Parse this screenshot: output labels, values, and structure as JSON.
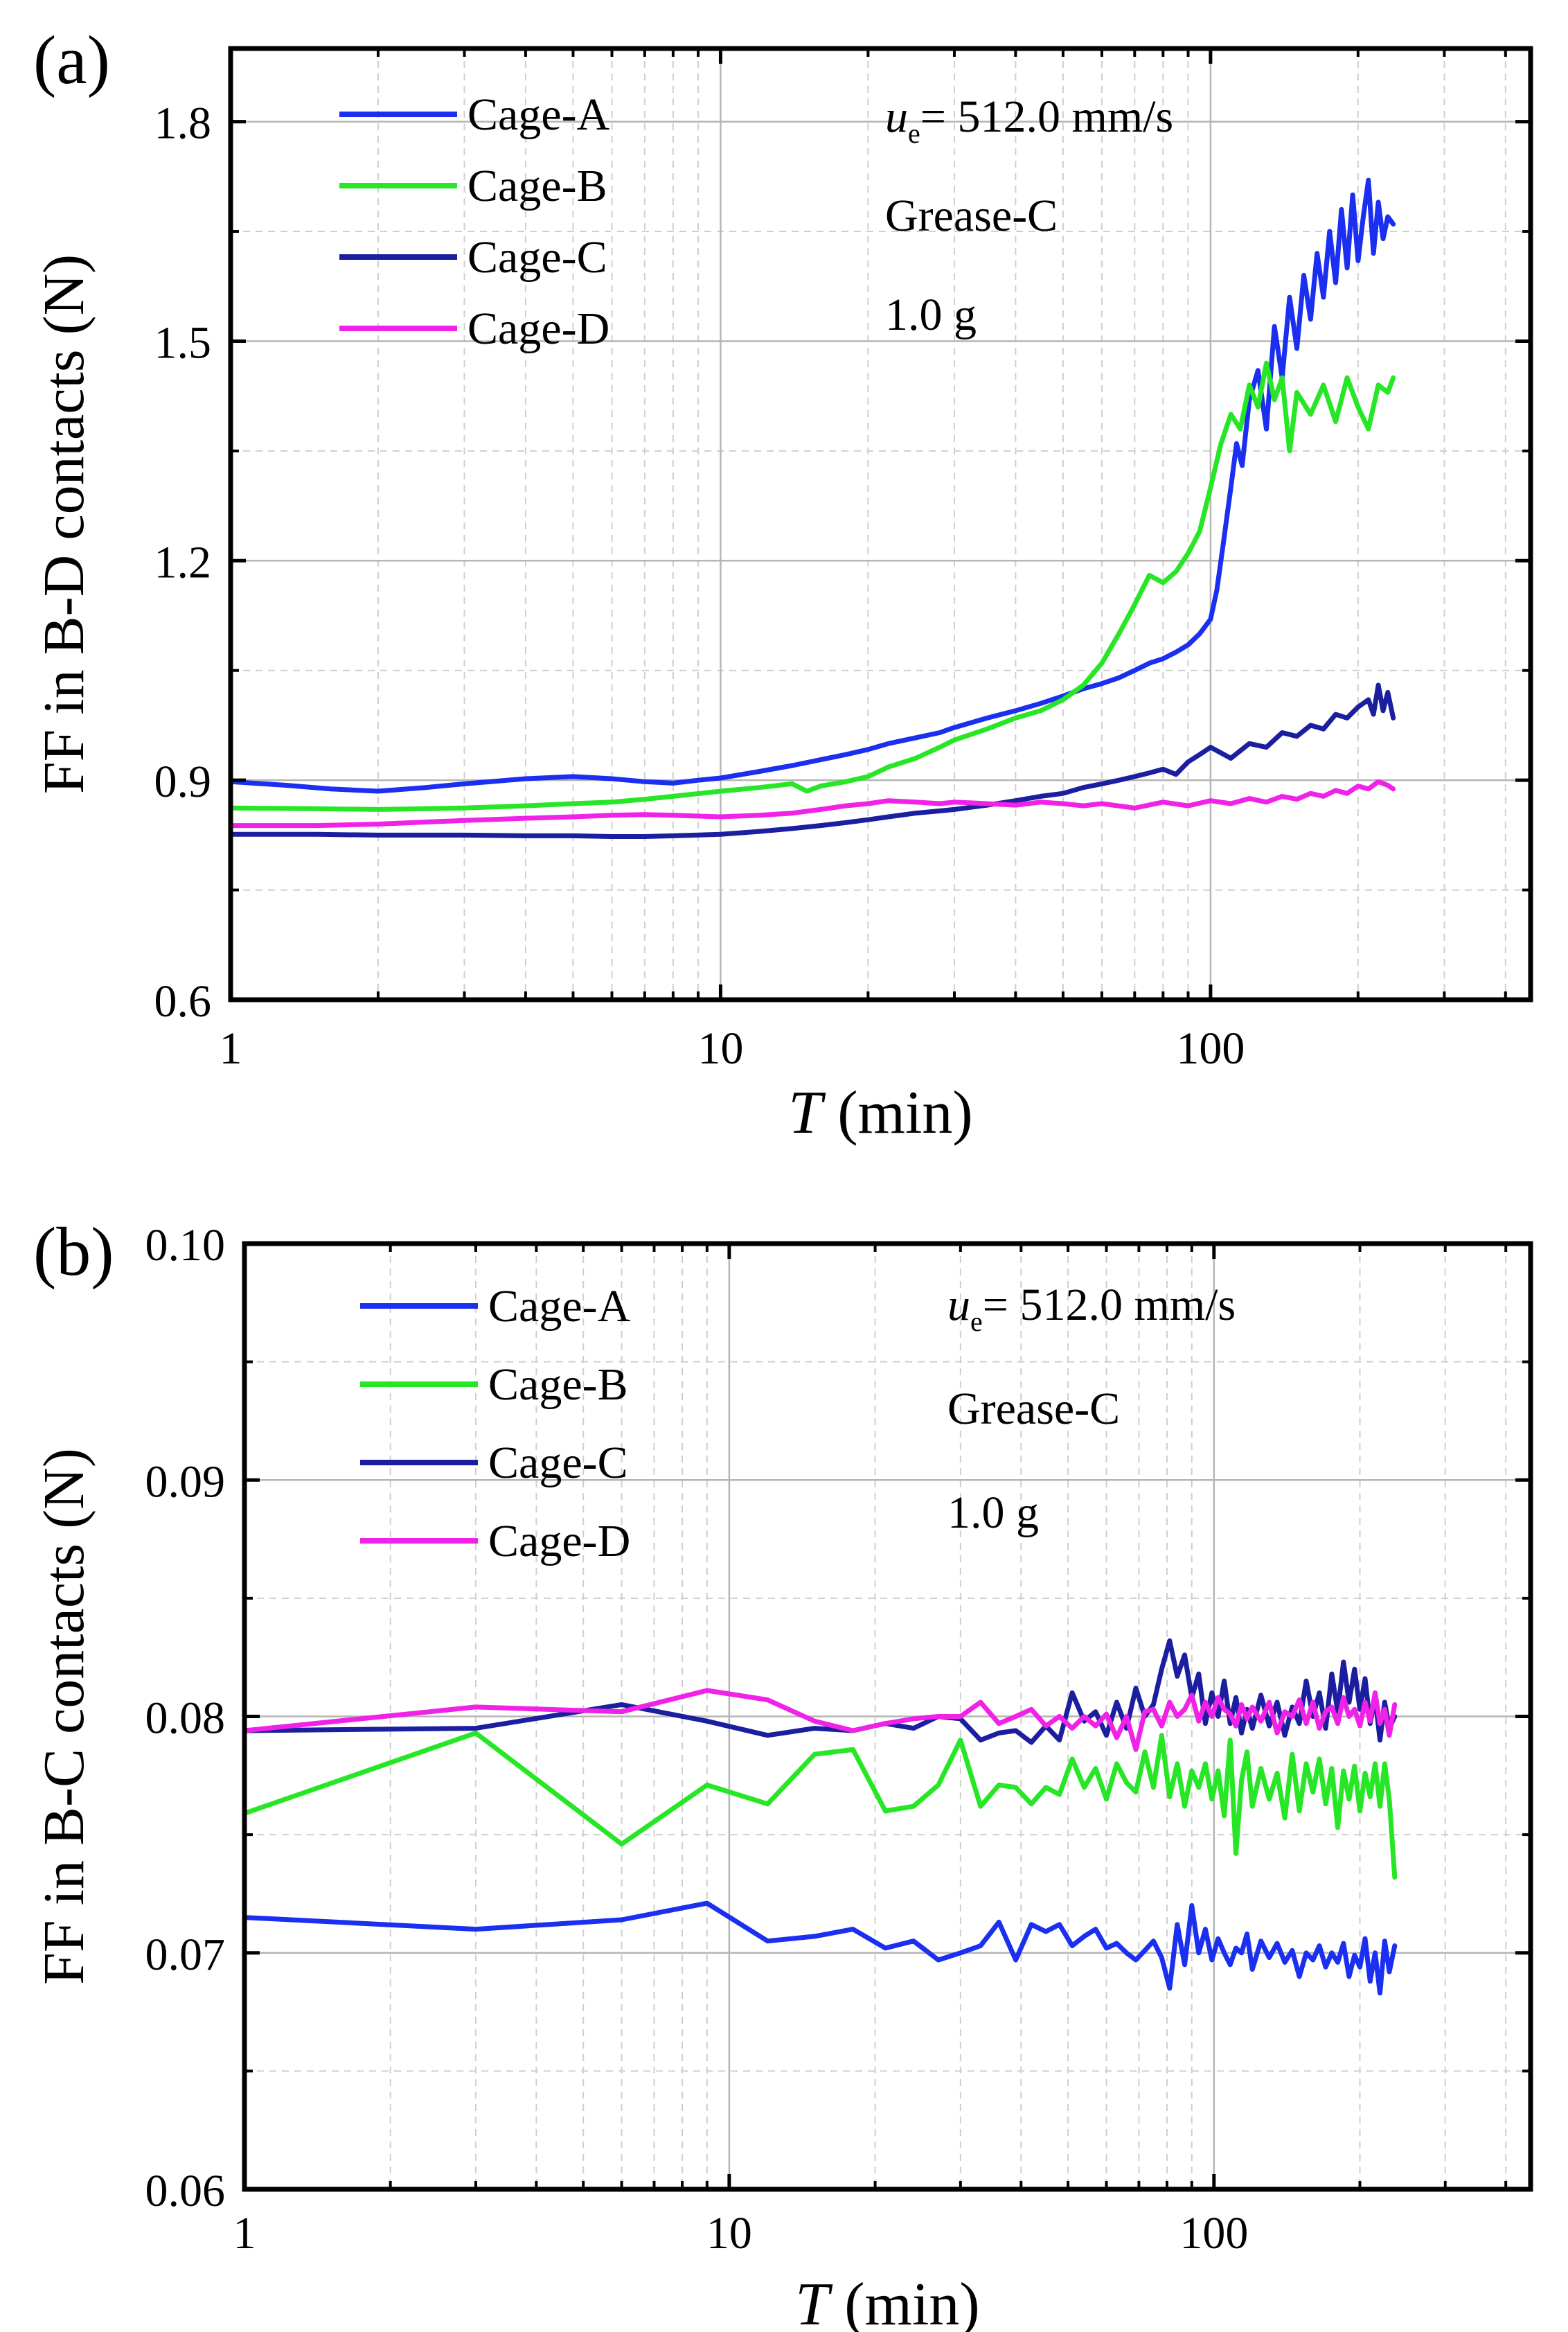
{
  "chart_data": [
    {
      "panel_label": "(a)",
      "type": "line",
      "xscale": "log",
      "xlim": [
        1,
        450
      ],
      "ylim": [
        0.6,
        1.9
      ],
      "xticks": [
        1,
        10,
        100
      ],
      "xtick_labels": [
        "1",
        "10",
        "100"
      ],
      "yticks": [
        0.6,
        0.9,
        1.2,
        1.5,
        1.8
      ],
      "ytick_labels": [
        "0.6",
        "0.9",
        "1.2",
        "1.5",
        "1.8"
      ],
      "yminor": [
        0.75,
        1.05,
        1.35,
        1.65
      ],
      "xlabel_italic": "T",
      "xlabel_rest": " (min)",
      "ylabel": "FF in B-D contacts (N)",
      "grid": true,
      "legend_position": "top-left",
      "annotation": {
        "speed_symbol": "u",
        "speed_sub": "e",
        "speed_value": "= 512.0 mm/s",
        "grease": "Grease-C",
        "mass": "1.0 g"
      },
      "series": [
        {
          "name": "Cage-A",
          "color": "#1a2ff0",
          "x": [
            1,
            1.3,
            1.6,
            2,
            2.5,
            3,
            4,
            5,
            6,
            7,
            8,
            9,
            10,
            12,
            14,
            16,
            18,
            20,
            22,
            25,
            28,
            30,
            35,
            40,
            45,
            50,
            55,
            60,
            65,
            70,
            75,
            80,
            85,
            90,
            95,
            100,
            103,
            106,
            110,
            113,
            116,
            120,
            125,
            130,
            135,
            140,
            145,
            150,
            155,
            160,
            165,
            170,
            175,
            180,
            185,
            190,
            195,
            200,
            205,
            210,
            215,
            220,
            225,
            230,
            236
          ],
          "values": [
            0.898,
            0.893,
            0.888,
            0.885,
            0.89,
            0.895,
            0.902,
            0.905,
            0.902,
            0.898,
            0.896,
            0.9,
            0.903,
            0.912,
            0.92,
            0.928,
            0.935,
            0.942,
            0.95,
            0.958,
            0.965,
            0.972,
            0.985,
            0.995,
            1.005,
            1.015,
            1.025,
            1.032,
            1.04,
            1.05,
            1.06,
            1.066,
            1.075,
            1.085,
            1.1,
            1.12,
            1.16,
            1.22,
            1.3,
            1.36,
            1.33,
            1.42,
            1.46,
            1.38,
            1.52,
            1.45,
            1.56,
            1.49,
            1.59,
            1.53,
            1.62,
            1.56,
            1.65,
            1.58,
            1.68,
            1.6,
            1.7,
            1.61,
            1.67,
            1.72,
            1.62,
            1.69,
            1.64,
            1.67,
            1.66
          ]
        },
        {
          "name": "Cage-B",
          "color": "#27e626",
          "x": [
            1,
            1.5,
            2,
            3,
            4,
            5,
            6,
            7,
            8,
            10,
            12,
            14,
            15,
            16,
            18,
            20,
            22,
            25,
            28,
            30,
            35,
            40,
            45,
            50,
            55,
            60,
            65,
            70,
            75,
            80,
            85,
            90,
            95,
            100,
            105,
            110,
            115,
            120,
            125,
            130,
            135,
            140,
            145,
            150,
            160,
            170,
            180,
            190,
            200,
            210,
            220,
            230,
            236
          ],
          "values": [
            0.862,
            0.861,
            0.86,
            0.862,
            0.865,
            0.868,
            0.87,
            0.874,
            0.878,
            0.885,
            0.89,
            0.895,
            0.885,
            0.892,
            0.898,
            0.905,
            0.918,
            0.93,
            0.945,
            0.955,
            0.97,
            0.985,
            0.995,
            1.01,
            1.03,
            1.06,
            1.1,
            1.14,
            1.18,
            1.17,
            1.185,
            1.21,
            1.24,
            1.3,
            1.36,
            1.4,
            1.38,
            1.44,
            1.41,
            1.47,
            1.42,
            1.45,
            1.35,
            1.43,
            1.4,
            1.44,
            1.39,
            1.45,
            1.41,
            1.38,
            1.44,
            1.43,
            1.45
          ]
        },
        {
          "name": "Cage-C",
          "color": "#1b1e9e",
          "x": [
            1,
            1.5,
            2,
            3,
            4,
            5,
            6,
            7,
            8,
            10,
            12,
            14,
            16,
            18,
            20,
            22,
            25,
            28,
            30,
            35,
            40,
            45,
            50,
            55,
            60,
            65,
            70,
            75,
            80,
            85,
            90,
            95,
            100,
            110,
            120,
            130,
            140,
            150,
            160,
            170,
            180,
            190,
            200,
            210,
            215,
            220,
            225,
            230,
            236
          ],
          "values": [
            0.826,
            0.826,
            0.825,
            0.825,
            0.824,
            0.824,
            0.823,
            0.823,
            0.824,
            0.826,
            0.83,
            0.834,
            0.838,
            0.842,
            0.846,
            0.85,
            0.855,
            0.858,
            0.86,
            0.866,
            0.872,
            0.878,
            0.882,
            0.89,
            0.895,
            0.9,
            0.905,
            0.91,
            0.915,
            0.908,
            0.925,
            0.935,
            0.945,
            0.93,
            0.95,
            0.945,
            0.965,
            0.96,
            0.975,
            0.97,
            0.99,
            0.985,
            1.0,
            1.01,
            0.99,
            1.03,
            0.995,
            1.02,
            0.985
          ]
        },
        {
          "name": "Cage-D",
          "color": "#f022e8",
          "x": [
            1,
            1.5,
            2,
            3,
            4,
            5,
            6,
            7,
            8,
            10,
            12,
            14,
            16,
            18,
            20,
            22,
            25,
            28,
            30,
            35,
            40,
            45,
            50,
            55,
            60,
            70,
            80,
            90,
            100,
            110,
            120,
            130,
            140,
            150,
            160,
            170,
            180,
            190,
            200,
            210,
            220,
            230,
            236
          ],
          "values": [
            0.838,
            0.838,
            0.84,
            0.845,
            0.848,
            0.85,
            0.852,
            0.853,
            0.852,
            0.85,
            0.852,
            0.855,
            0.86,
            0.865,
            0.868,
            0.872,
            0.87,
            0.868,
            0.87,
            0.868,
            0.866,
            0.87,
            0.868,
            0.865,
            0.868,
            0.862,
            0.87,
            0.865,
            0.872,
            0.868,
            0.875,
            0.87,
            0.878,
            0.874,
            0.882,
            0.878,
            0.886,
            0.882,
            0.892,
            0.888,
            0.898,
            0.893,
            0.888
          ]
        }
      ]
    },
    {
      "panel_label": "(b)",
      "type": "line",
      "xscale": "log",
      "xlim": [
        1,
        450
      ],
      "ylim": [
        0.06,
        0.1
      ],
      "xticks": [
        1,
        10,
        100
      ],
      "xtick_labels": [
        "1",
        "10",
        "100"
      ],
      "yticks": [
        0.06,
        0.07,
        0.08,
        0.09,
        0.1
      ],
      "ytick_labels": [
        "0.06",
        "0.07",
        "0.08",
        "0.09",
        "0.10"
      ],
      "yminor": [
        0.065,
        0.075,
        0.085,
        0.095
      ],
      "xlabel_italic": "T",
      "xlabel_rest": " (min)",
      "ylabel": "FF in B-C contacts (N)",
      "grid": true,
      "legend_position": "top-left",
      "annotation": {
        "speed_symbol": "u",
        "speed_sub": "e",
        "speed_value": "= 512.0 mm/s",
        "grease": "Grease-C",
        "mass": "1.0 g"
      },
      "series": [
        {
          "name": "Cage-A",
          "color": "#1a2ff0",
          "x": [
            1,
            3,
            6,
            9,
            12,
            15,
            18,
            21,
            24,
            27,
            30,
            33,
            36,
            39,
            42,
            45,
            48,
            51,
            54,
            57,
            60,
            63,
            66,
            69,
            72,
            75,
            78,
            81,
            84,
            87,
            90,
            93,
            96,
            99,
            102,
            105,
            108,
            111,
            114,
            117,
            120,
            125,
            130,
            135,
            140,
            145,
            150,
            155,
            160,
            165,
            170,
            175,
            180,
            185,
            190,
            195,
            200,
            205,
            210,
            215,
            220,
            225,
            230,
            236
          ],
          "values": [
            0.0715,
            0.071,
            0.0714,
            0.0721,
            0.0705,
            0.0707,
            0.071,
            0.0702,
            0.0705,
            0.0697,
            0.07,
            0.0703,
            0.0713,
            0.0697,
            0.0712,
            0.0709,
            0.0712,
            0.0703,
            0.0707,
            0.071,
            0.0702,
            0.0704,
            0.07,
            0.0697,
            0.0701,
            0.0705,
            0.0698,
            0.0685,
            0.0712,
            0.0695,
            0.072,
            0.07,
            0.071,
            0.0697,
            0.0706,
            0.07,
            0.0695,
            0.0702,
            0.07,
            0.0708,
            0.0693,
            0.0705,
            0.0698,
            0.0704,
            0.0696,
            0.0701,
            0.069,
            0.07,
            0.0697,
            0.0703,
            0.0694,
            0.07,
            0.0696,
            0.0704,
            0.069,
            0.0699,
            0.0694,
            0.0706,
            0.0688,
            0.07,
            0.0683,
            0.0705,
            0.0692,
            0.0703
          ]
        },
        {
          "name": "Cage-B",
          "color": "#27e626",
          "x": [
            1,
            3,
            6,
            9,
            12,
            15,
            18,
            21,
            24,
            27,
            30,
            33,
            36,
            39,
            42,
            45,
            48,
            51,
            54,
            57,
            60,
            63,
            66,
            69,
            72,
            75,
            78,
            81,
            84,
            87,
            90,
            93,
            96,
            99,
            102,
            105,
            108,
            111,
            114,
            117,
            120,
            125,
            130,
            135,
            140,
            145,
            150,
            155,
            160,
            165,
            170,
            175,
            180,
            185,
            190,
            195,
            200,
            205,
            210,
            215,
            220,
            225,
            230,
            236
          ],
          "values": [
            0.0759,
            0.0793,
            0.0746,
            0.0771,
            0.0763,
            0.0784,
            0.0786,
            0.076,
            0.0762,
            0.0771,
            0.079,
            0.0762,
            0.0771,
            0.077,
            0.0763,
            0.077,
            0.0767,
            0.0782,
            0.077,
            0.0778,
            0.0765,
            0.078,
            0.0772,
            0.0768,
            0.0785,
            0.077,
            0.0792,
            0.0766,
            0.078,
            0.0762,
            0.0777,
            0.077,
            0.078,
            0.0765,
            0.0777,
            0.0758,
            0.079,
            0.0742,
            0.0773,
            0.0785,
            0.0762,
            0.0778,
            0.0765,
            0.0776,
            0.0757,
            0.0784,
            0.076,
            0.078,
            0.0768,
            0.0782,
            0.0763,
            0.0778,
            0.0753,
            0.0777,
            0.0765,
            0.0779,
            0.076,
            0.0776,
            0.0766,
            0.078,
            0.0762,
            0.078,
            0.0765,
            0.0732
          ]
        },
        {
          "name": "Cage-C",
          "color": "#1b1e9e",
          "x": [
            1,
            3,
            6,
            9,
            12,
            15,
            18,
            21,
            24,
            27,
            30,
            33,
            36,
            39,
            42,
            45,
            48,
            51,
            54,
            57,
            60,
            63,
            66,
            69,
            72,
            75,
            78,
            81,
            84,
            87,
            90,
            93,
            96,
            99,
            102,
            105,
            108,
            111,
            114,
            117,
            120,
            125,
            130,
            135,
            140,
            145,
            150,
            155,
            160,
            165,
            170,
            175,
            180,
            185,
            190,
            195,
            200,
            205,
            210,
            215,
            220,
            225,
            230,
            236
          ],
          "values": [
            0.0794,
            0.0795,
            0.0805,
            0.0798,
            0.0792,
            0.0795,
            0.0794,
            0.0797,
            0.0795,
            0.08,
            0.0799,
            0.079,
            0.0793,
            0.0794,
            0.0789,
            0.0796,
            0.079,
            0.081,
            0.0798,
            0.0802,
            0.0792,
            0.0806,
            0.0795,
            0.0812,
            0.08,
            0.0805,
            0.082,
            0.0832,
            0.0817,
            0.0826,
            0.0808,
            0.0818,
            0.0797,
            0.081,
            0.08,
            0.0815,
            0.0797,
            0.0808,
            0.0793,
            0.0803,
            0.0795,
            0.0809,
            0.0796,
            0.0806,
            0.0792,
            0.0804,
            0.0797,
            0.0815,
            0.08,
            0.081,
            0.0795,
            0.0818,
            0.0802,
            0.0823,
            0.0806,
            0.082,
            0.0803,
            0.0816,
            0.0797,
            0.0808,
            0.079,
            0.0806,
            0.0795,
            0.08
          ]
        },
        {
          "name": "Cage-D",
          "color": "#f022e8",
          "x": [
            1,
            3,
            6,
            9,
            12,
            15,
            18,
            21,
            24,
            27,
            30,
            33,
            36,
            39,
            42,
            45,
            48,
            51,
            54,
            57,
            60,
            63,
            66,
            69,
            72,
            75,
            78,
            81,
            84,
            87,
            90,
            93,
            96,
            99,
            102,
            105,
            108,
            111,
            114,
            117,
            120,
            125,
            130,
            135,
            140,
            145,
            150,
            155,
            160,
            165,
            170,
            175,
            180,
            185,
            190,
            195,
            200,
            205,
            210,
            215,
            220,
            225,
            230,
            236
          ],
          "values": [
            0.0794,
            0.0804,
            0.0802,
            0.0811,
            0.0807,
            0.0798,
            0.0794,
            0.0797,
            0.0799,
            0.08,
            0.08,
            0.0806,
            0.0797,
            0.08,
            0.0803,
            0.0796,
            0.08,
            0.0795,
            0.08,
            0.0796,
            0.0801,
            0.0791,
            0.08,
            0.0786,
            0.0802,
            0.0803,
            0.0796,
            0.0806,
            0.08,
            0.0803,
            0.0809,
            0.0798,
            0.0806,
            0.08,
            0.0808,
            0.0803,
            0.0801,
            0.0796,
            0.0805,
            0.0799,
            0.0804,
            0.0798,
            0.0806,
            0.0793,
            0.0802,
            0.08,
            0.0807,
            0.0797,
            0.0806,
            0.0795,
            0.0802,
            0.0804,
            0.0797,
            0.0808,
            0.08,
            0.0803,
            0.0796,
            0.0806,
            0.0798,
            0.081,
            0.0797,
            0.0803,
            0.0792,
            0.0805
          ]
        }
      ]
    }
  ]
}
